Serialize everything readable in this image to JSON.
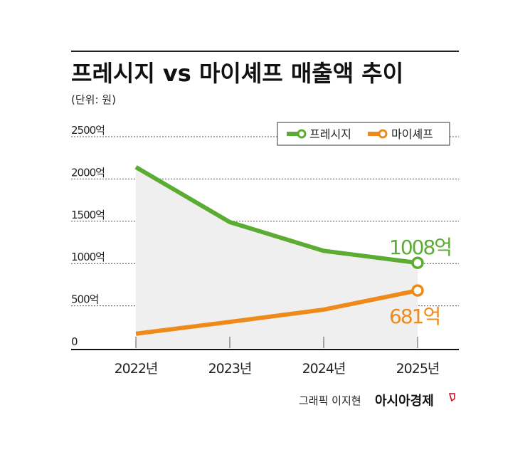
{
  "chart_data": {
    "type": "line",
    "title": "프레시지 vs 마이셰프 매출액 추이",
    "subtitle": "(단위: 원)",
    "categories": [
      "2022년",
      "2023년",
      "2024년",
      "2025년"
    ],
    "y_ticks": [
      "0",
      "500억",
      "1000억",
      "1500억",
      "2000억",
      "2500억"
    ],
    "ylim": [
      0,
      2500
    ],
    "grid": true,
    "legend_position": "top-right",
    "series": [
      {
        "name": "프레시지",
        "values": [
          2140,
          1490,
          1150,
          1008
        ],
        "color": "#5aad32",
        "end_label": "1008억"
      },
      {
        "name": "마이셰프",
        "values": [
          170,
          310,
          455,
          681
        ],
        "color": "#ee8a1a",
        "end_label": "681억"
      }
    ],
    "credit": "그래픽 이지현",
    "brand": "아시아경제"
  }
}
